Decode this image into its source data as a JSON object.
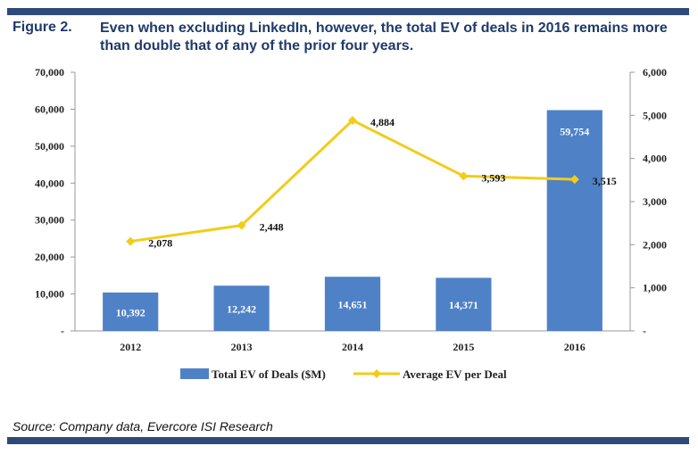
{
  "figure_label": "Figure 2.",
  "title": "Even when excluding LinkedIn, however, the total EV of deals in 2016 remains more than double that of any of the prior four years.",
  "source": "Source: Company data, Evercore ISI Research",
  "colors": {
    "bar": "#4f81c7",
    "line": "#f2cc19",
    "rule": "#2f4a7a",
    "title": "#1f3a6b"
  },
  "chart_data": {
    "type": "bar",
    "categories": [
      "2012",
      "2013",
      "2014",
      "2015",
      "2016"
    ],
    "series": [
      {
        "name": "Total EV of Deals ($M)",
        "type": "bar",
        "axis": "left",
        "values": [
          10392,
          12242,
          14651,
          14371,
          59754
        ],
        "labels": [
          "10,392",
          "12,242",
          "14,651",
          "14,371",
          "59,754"
        ]
      },
      {
        "name": "Average EV per Deal",
        "type": "line",
        "axis": "right",
        "values": [
          2078,
          2448,
          4884,
          3593,
          3515
        ],
        "labels": [
          "2,078",
          "2,448",
          "4,884",
          "3,593",
          "3,515"
        ]
      }
    ],
    "y_left": {
      "ylim": [
        0,
        70000
      ],
      "ticks": [
        0,
        10000,
        20000,
        30000,
        40000,
        50000,
        60000,
        70000
      ],
      "tick_labels": [
        "-",
        "10,000",
        "20,000",
        "30,000",
        "40,000",
        "50,000",
        "60,000",
        "70,000"
      ]
    },
    "y_right": {
      "ylim": [
        0,
        6000
      ],
      "ticks": [
        0,
        1000,
        2000,
        3000,
        4000,
        5000,
        6000
      ],
      "tick_labels": [
        "-",
        "1,000",
        "2,000",
        "3,000",
        "4,000",
        "5,000",
        "6,000"
      ]
    },
    "legend": "bottom",
    "grid": false
  }
}
